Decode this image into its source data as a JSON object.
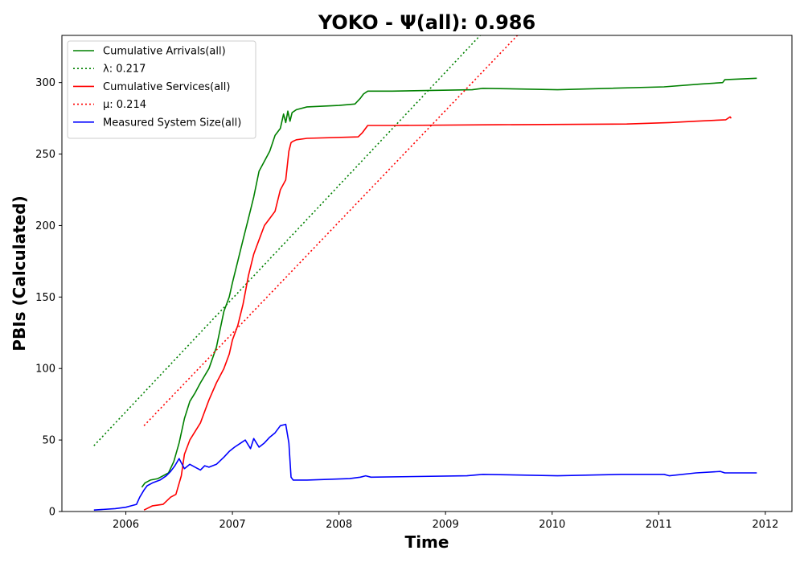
{
  "chart_data": {
    "type": "line",
    "title": "YOKO -  Ψ(all): 0.986",
    "xlabel": "Time",
    "ylabel": "PBIs (Calculated)",
    "xlim": [
      2005.4,
      2012.25
    ],
    "ylim": [
      0,
      333
    ],
    "x_ticks": [
      2006,
      2007,
      2008,
      2009,
      2010,
      2011,
      2012
    ],
    "y_ticks": [
      0,
      50,
      100,
      150,
      200,
      250,
      300
    ],
    "grid": false,
    "legend_position": "top-left",
    "series": [
      {
        "name": "Cumulative Arrivals(all)",
        "style": "solid",
        "color": "#008000",
        "x": [
          2006.15,
          2006.18,
          2006.23,
          2006.3,
          2006.4,
          2006.45,
          2006.5,
          2006.55,
          2006.6,
          2006.65,
          2006.7,
          2006.78,
          2006.85,
          2006.92,
          2006.97,
          2007.0,
          2007.05,
          2007.1,
          2007.15,
          2007.2,
          2007.25,
          2007.3,
          2007.35,
          2007.4,
          2007.45,
          2007.48,
          2007.5,
          2007.52,
          2007.54,
          2007.56,
          2007.58,
          2007.6,
          2007.7,
          2008.0,
          2008.15,
          2008.2,
          2008.23,
          2008.27,
          2008.5,
          2009.25,
          2009.35,
          2010.05,
          2011.05,
          2011.4,
          2011.6,
          2011.62,
          2011.92
        ],
        "y": [
          17,
          20,
          22,
          23,
          27,
          35,
          48,
          65,
          77,
          83,
          90,
          100,
          115,
          140,
          150,
          160,
          175,
          190,
          205,
          220,
          238,
          245,
          252,
          263,
          268,
          278,
          272,
          280,
          273,
          279,
          280,
          281,
          283,
          284,
          285,
          289,
          292,
          294,
          294,
          295,
          296,
          295,
          297,
          299,
          300,
          302,
          303
        ]
      },
      {
        "name": "λ: 0.217",
        "style": "dotted",
        "color": "#008000",
        "x": [
          2005.7,
          2009.35
        ],
        "y": [
          46,
          335
        ]
      },
      {
        "name": "Cumulative Services(all)",
        "style": "solid",
        "color": "#ff0000",
        "x": [
          2006.17,
          2006.25,
          2006.35,
          2006.42,
          2006.47,
          2006.52,
          2006.55,
          2006.6,
          2006.7,
          2006.78,
          2006.85,
          2006.92,
          2006.97,
          2007.0,
          2007.05,
          2007.1,
          2007.15,
          2007.2,
          2007.25,
          2007.3,
          2007.35,
          2007.4,
          2007.45,
          2007.5,
          2007.53,
          2007.55,
          2007.57,
          2007.6,
          2007.7,
          2008.18,
          2008.22,
          2008.27,
          2008.5,
          2009.5,
          2010.7,
          2011.1,
          2011.35,
          2011.63,
          2011.67,
          2011.68
        ],
        "y": [
          1,
          4,
          5,
          10,
          12,
          25,
          40,
          50,
          62,
          78,
          90,
          100,
          110,
          120,
          130,
          145,
          165,
          180,
          190,
          200,
          205,
          210,
          225,
          232,
          252,
          258,
          259,
          260,
          261,
          262,
          265,
          270,
          270,
          270.5,
          271,
          272,
          273,
          274,
          276,
          275
        ]
      },
      {
        "name": "μ: 0.214",
        "style": "dotted",
        "color": "#ff0000",
        "x": [
          2006.17,
          2009.7
        ],
        "y": [
          60,
          335
        ]
      },
      {
        "name": "Measured System Size(all)",
        "style": "solid",
        "color": "#0000ff",
        "x": [
          2005.7,
          2005.9,
          2006.0,
          2006.05,
          2006.1,
          2006.13,
          2006.17,
          2006.2,
          2006.25,
          2006.32,
          2006.38,
          2006.42,
          2006.46,
          2006.5,
          2006.55,
          2006.6,
          2006.65,
          2006.7,
          2006.74,
          2006.78,
          2006.85,
          2006.92,
          2006.97,
          2007.02,
          2007.08,
          2007.12,
          2007.17,
          2007.2,
          2007.25,
          2007.3,
          2007.35,
          2007.4,
          2007.45,
          2007.5,
          2007.53,
          2007.55,
          2007.57,
          2007.6,
          2007.7,
          2008.1,
          2008.2,
          2008.25,
          2008.3,
          2009.2,
          2009.35,
          2010.05,
          2010.65,
          2011.05,
          2011.1,
          2011.35,
          2011.58,
          2011.62,
          2011.92
        ],
        "y": [
          1,
          2,
          3,
          4,
          5,
          10,
          15,
          18,
          20,
          22,
          25,
          28,
          32,
          37,
          30,
          33,
          31,
          29,
          32,
          31,
          33,
          38,
          42,
          45,
          48,
          50,
          44,
          51,
          45,
          48,
          52,
          55,
          60,
          61,
          48,
          24,
          22,
          22,
          22,
          23,
          24,
          25,
          24,
          25,
          26,
          25,
          26,
          26,
          25,
          27,
          28,
          27,
          27
        ]
      }
    ]
  }
}
